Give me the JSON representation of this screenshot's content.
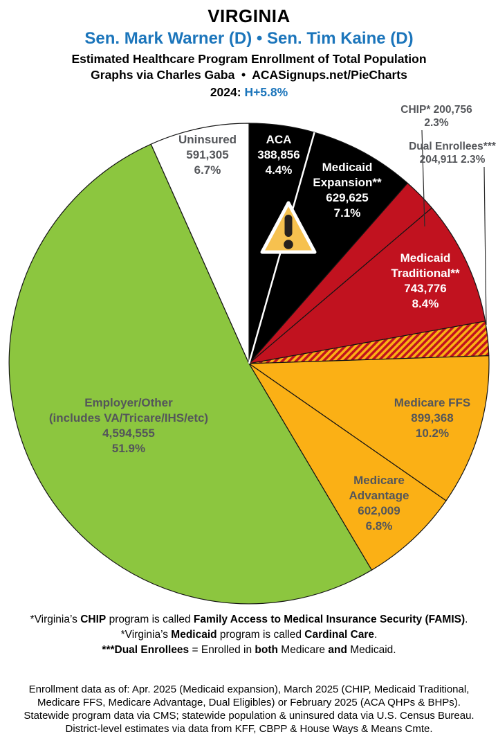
{
  "header": {
    "state": "VIRGINIA",
    "senators": "Sen. Mark Warner (D) • Sen. Tim Kaine (D)",
    "subtitle_line1": "Estimated Healthcare Program Enrollment of Total Population",
    "subtitle_line2": "Graphs via Charles Gaba  •  ACASignups.net/PieCharts",
    "year_label": "2024: ",
    "year_value": "H+5.8%"
  },
  "colors": {
    "accent_blue": "#1B75BB",
    "pie_black": "#000000",
    "pie_red": "#C1121F",
    "pie_yellow": "#FBB015",
    "pie_green": "#8CC63F",
    "pie_white": "#FFFFFF",
    "label_gray": "#54565A",
    "slice_edge": "#141414",
    "warning_yellow": "#F6C14F"
  },
  "chart_data": {
    "type": "pie",
    "title": "Estimated Healthcare Program Enrollment of Total Population — Virginia, 2024",
    "legend_position": "labels in/beside slices",
    "start_angle": "12 o'clock, clockwise",
    "slices": [
      {
        "id": "aca",
        "name": "ACA",
        "value": 388856,
        "pct": 4.4,
        "color": "#000000",
        "pattern": "solid",
        "label_lines": [
          "ACA",
          "388,856",
          "4.4%"
        ]
      },
      {
        "id": "medicaid-expansion",
        "name": "Medicaid Expansion**",
        "value": 629625,
        "pct": 7.1,
        "color": "#000000",
        "pattern": "solid",
        "label_lines": [
          "Medicaid",
          "Expansion**",
          "629,625",
          "7.1%"
        ]
      },
      {
        "id": "chip",
        "name": "CHIP*",
        "value": 200756,
        "pct": 2.3,
        "color": "#C1121F",
        "pattern": "solid",
        "label_lines": [
          "CHIP* 200,756",
          "2.3%"
        ]
      },
      {
        "id": "medicaid-traditional",
        "name": "Medicaid Traditional**",
        "value": 743776,
        "pct": 8.4,
        "color": "#C1121F",
        "pattern": "solid",
        "label_lines": [
          "Medicaid",
          "Traditional**",
          "743,776",
          "8.4%"
        ]
      },
      {
        "id": "dual-enrollees",
        "name": "Dual Enrollees***",
        "value": 204911,
        "pct": 2.3,
        "color": "#C1121F",
        "pattern": "hatch",
        "label_lines": [
          "Dual Enrollees***",
          "204,911 2.3%"
        ]
      },
      {
        "id": "medicare-ffs",
        "name": "Medicare FFS",
        "value": 899368,
        "pct": 10.2,
        "color": "#FBB015",
        "pattern": "solid",
        "label_lines": [
          "Medicare FFS",
          "899,368",
          "10.2%"
        ]
      },
      {
        "id": "medicare-advantage",
        "name": "Medicare Advantage",
        "value": 602009,
        "pct": 6.8,
        "color": "#FBB015",
        "pattern": "solid",
        "label_lines": [
          "Medicare",
          "Advantage",
          "602,009",
          "6.8%"
        ]
      },
      {
        "id": "employer-other",
        "name": "Employer/Other",
        "value": 4594555,
        "pct": 51.9,
        "color": "#8CC63F",
        "pattern": "solid",
        "label_lines": [
          "Employer/Other",
          "(includes VA/Tricare/IHS/etc)",
          "4,594,555",
          "51.9%"
        ]
      },
      {
        "id": "uninsured",
        "name": "Uninsured",
        "value": 591305,
        "pct": 6.7,
        "color": "#FFFFFF",
        "pattern": "solid",
        "label_lines": [
          "Uninsured",
          "591,305",
          "6.7%"
        ]
      }
    ]
  },
  "footnotes": [
    {
      "segments": [
        {
          "t": "*Virginia’s ",
          "b": false
        },
        {
          "t": "CHIP",
          "b": true
        },
        {
          "t": " program is called ",
          "b": false
        },
        {
          "t": "Family Access to Medical Insurance Security (FAMIS)",
          "b": true
        },
        {
          "t": ".",
          "b": false
        }
      ]
    },
    {
      "segments": [
        {
          "t": "*Virginia’s ",
          "b": false
        },
        {
          "t": "Medicaid",
          "b": true
        },
        {
          "t": " program is called ",
          "b": false
        },
        {
          "t": "Cardinal Care",
          "b": true
        },
        {
          "t": ".",
          "b": false
        }
      ]
    },
    {
      "segments": [
        {
          "t": "***Dual Enrollees",
          "b": true
        },
        {
          "t": " = Enrolled in ",
          "b": false
        },
        {
          "t": "both",
          "b": true
        },
        {
          "t": " Medicare ",
          "b": false
        },
        {
          "t": "and",
          "b": true
        },
        {
          "t": " Medicaid.",
          "b": false
        }
      ]
    }
  ],
  "source_lines": [
    "Enrollment data as of: Apr. 2025 (Medicaid expansion), March 2025 (CHIP, Medicaid Traditional,",
    "Medicare FFS, Medicare Advantage, Dual Eligibles) or February 2025 (ACA QHPs & BHPs).",
    "Statewide program data via CMS; statewide population & uninsured data via U.S. Census Bureau.",
    "District-level estimates via data from KFF, CBPP & House Ways & Means Cmte."
  ]
}
